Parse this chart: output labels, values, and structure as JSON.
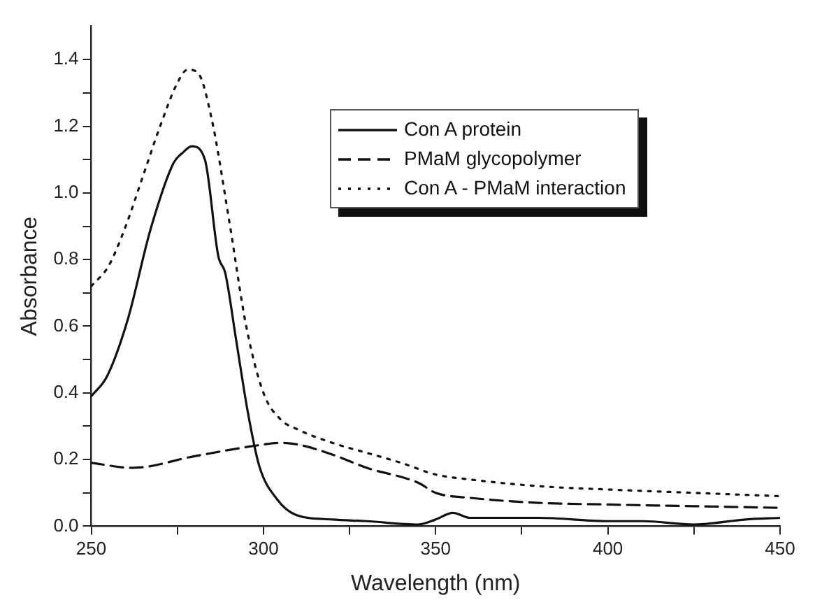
{
  "chart_data": {
    "type": "line",
    "xlabel": "Wavelength (nm)",
    "ylabel": "Absorbance",
    "xlim": [
      250,
      450
    ],
    "ylim": [
      0,
      1.5
    ],
    "xticks": [
      250,
      {
        "value": 275,
        "label": null
      },
      300,
      {
        "value": 325,
        "label": null
      },
      350,
      {
        "value": 375,
        "label": null
      },
      400,
      {
        "value": 425,
        "label": null
      },
      450
    ],
    "yticks": [
      {
        "value": 0,
        "label": "0.0"
      },
      {
        "value": 0.1,
        "label": null
      },
      {
        "value": 0.2,
        "label": "0.2"
      },
      {
        "value": 0.3,
        "label": null
      },
      {
        "value": 0.4,
        "label": "0.4"
      },
      {
        "value": 0.5,
        "label": null
      },
      {
        "value": 0.6,
        "label": "0.6"
      },
      {
        "value": 0.7,
        "label": null
      },
      {
        "value": 0.8,
        "label": "0.8"
      },
      {
        "value": 0.9,
        "label": null
      },
      {
        "value": 1.0,
        "label": "1.0"
      },
      {
        "value": 1.1,
        "label": null
      },
      {
        "value": 1.2,
        "label": "1.2"
      },
      {
        "value": 1.3,
        "label": null
      },
      {
        "value": 1.4,
        "label": "1.4"
      }
    ],
    "grid": false,
    "legend": "top right",
    "marker": "none",
    "series": [
      {
        "name": "Con A protein",
        "color": "#111111",
        "line_style": "solid",
        "x": [
          250,
          254.6,
          260.6,
          267.2,
          273.9,
          276.5,
          279.2,
          283,
          286.9,
          288.9,
          292.2,
          295.5,
          298.8,
          304,
          309.4,
          320,
          330,
          345,
          350,
          355,
          360,
          380,
          400,
          410,
          425,
          440,
          450
        ],
        "values": [
          0.39,
          0.45,
          0.62,
          0.89,
          1.09,
          1.12,
          1.14,
          1.1,
          0.81,
          0.76,
          0.55,
          0.34,
          0.18,
          0.08,
          0.034,
          0.02,
          0.015,
          0.005,
          0.02,
          0.04,
          0.025,
          0.025,
          0.015,
          0.015,
          0.005,
          0.02,
          0.025
        ]
      },
      {
        "name": "PMaM glycopolymer",
        "color": "#111111",
        "line_style": "dashed",
        "x": [
          250,
          262,
          280,
          300,
          305,
          310,
          320,
          330,
          345,
          350,
          360,
          380,
          400,
          425,
          450
        ],
        "values": [
          0.19,
          0.175,
          0.21,
          0.245,
          0.25,
          0.245,
          0.215,
          0.175,
          0.13,
          0.1,
          0.085,
          0.07,
          0.065,
          0.06,
          0.055
        ]
      },
      {
        "name": "Con A - PMaM interaction",
        "color": "#111111",
        "line_style": "dotted",
        "x": [
          250,
          255,
          260,
          265,
          270,
          275,
          278,
          281,
          285,
          290,
          295,
          300,
          305,
          310,
          320,
          330,
          340,
          350,
          360,
          380,
          400,
          425,
          450
        ],
        "values": [
          0.72,
          0.78,
          0.9,
          1.05,
          1.2,
          1.33,
          1.37,
          1.36,
          1.22,
          0.92,
          0.6,
          0.4,
          0.32,
          0.29,
          0.25,
          0.22,
          0.19,
          0.155,
          0.14,
          0.12,
          0.11,
          0.1,
          0.09
        ]
      }
    ]
  }
}
